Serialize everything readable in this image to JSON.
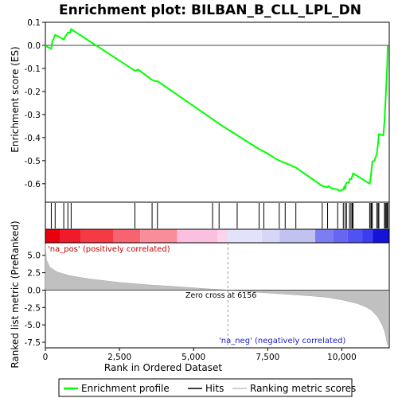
{
  "chart_data": {
    "type": "line",
    "title": "Enrichment plot: BILBAN_B_CLL_LPL_DN",
    "xlabel": "Rank in Ordered Dataset",
    "ylabel_top": "Enrichment score (ES)",
    "ylabel_bottom": "Ranked list metric (PreRanked)",
    "x_range": [
      0,
      11600
    ],
    "es_ylim": [
      -0.68,
      0.1
    ],
    "metric_ylim": [
      -8.3,
      6.8
    ],
    "x_ticks": [
      0,
      2500,
      5000,
      7500,
      10000
    ],
    "x_tick_labels": [
      "0",
      "2,500",
      "5,000",
      "7,500",
      "10,000"
    ],
    "es_ticks": [
      0.1,
      0.0,
      -0.1,
      -0.2,
      -0.3,
      -0.4,
      -0.5,
      -0.6
    ],
    "es_tick_labels": [
      "0.1",
      "0.0",
      "-0.1",
      "-0.2",
      "-0.3",
      "-0.4",
      "-0.5",
      "-0.6"
    ],
    "metric_ticks": [
      5.0,
      2.5,
      0.0,
      -2.5,
      -5.0,
      -7.5
    ],
    "metric_tick_labels": [
      "5.0",
      "2.5",
      "0.0",
      "-2.5",
      "-5.0",
      "-7.5"
    ],
    "es_curve": [
      [
        0,
        0
      ],
      [
        40,
        -0.005
      ],
      [
        200,
        -0.015
      ],
      [
        230,
        0.015
      ],
      [
        330,
        0.045
      ],
      [
        420,
        0.04
      ],
      [
        620,
        0.025
      ],
      [
        680,
        0.04
      ],
      [
        760,
        0.055
      ],
      [
        830,
        0.055
      ],
      [
        870,
        0.07
      ],
      [
        3020,
        -0.11
      ],
      [
        3130,
        -0.105
      ],
      [
        3600,
        -0.15
      ],
      [
        3700,
        -0.155
      ],
      [
        3780,
        -0.155
      ],
      [
        5640,
        -0.32
      ],
      [
        5860,
        -0.34
      ],
      [
        6470,
        -0.39
      ],
      [
        7210,
        -0.45
      ],
      [
        7370,
        -0.46
      ],
      [
        7890,
        -0.5
      ],
      [
        8090,
        -0.51
      ],
      [
        8450,
        -0.53
      ],
      [
        9340,
        -0.61
      ],
      [
        9520,
        -0.615
      ],
      [
        9560,
        -0.61
      ],
      [
        9650,
        -0.62
      ],
      [
        9860,
        -0.625
      ],
      [
        9900,
        -0.63
      ],
      [
        10050,
        -0.625
      ],
      [
        10080,
        -0.615
      ],
      [
        10110,
        -0.625
      ],
      [
        10130,
        -0.605
      ],
      [
        10160,
        -0.595
      ],
      [
        10240,
        -0.595
      ],
      [
        10260,
        -0.58
      ],
      [
        10310,
        -0.58
      ],
      [
        10350,
        -0.57
      ],
      [
        10380,
        -0.555
      ],
      [
        10940,
        -0.6
      ],
      [
        10980,
        -0.57
      ],
      [
        11000,
        -0.54
      ],
      [
        11030,
        -0.505
      ],
      [
        11100,
        -0.5
      ],
      [
        11180,
        -0.47
      ],
      [
        11220,
        -0.43
      ],
      [
        11250,
        -0.385
      ],
      [
        11400,
        -0.39
      ],
      [
        11440,
        -0.33
      ],
      [
        11470,
        -0.25
      ],
      [
        11500,
        -0.17
      ],
      [
        11530,
        -0.09
      ],
      [
        11550,
        0.0
      ]
    ],
    "hits": [
      200,
      330,
      620,
      760,
      870,
      3020,
      3600,
      3780,
      5640,
      5860,
      6470,
      7210,
      7370,
      7890,
      8090,
      8450,
      9340,
      9520,
      9860,
      10050,
      10110,
      10160,
      10260,
      10310,
      10350,
      10380,
      10940,
      10980,
      11000,
      11030,
      11180,
      11220,
      11250,
      11440,
      11470,
      11500,
      11530,
      11550
    ],
    "metric_curve": [
      [
        0,
        6.6
      ],
      [
        40,
        4.3
      ],
      [
        150,
        3.3
      ],
      [
        400,
        2.6
      ],
      [
        800,
        2.1
      ],
      [
        1500,
        1.6
      ],
      [
        2500,
        1.1
      ],
      [
        3500,
        0.75
      ],
      [
        4500,
        0.48
      ],
      [
        5500,
        0.18
      ],
      [
        6156,
        0.0
      ],
      [
        7000,
        -0.28
      ],
      [
        8000,
        -0.55
      ],
      [
        9000,
        -0.85
      ],
      [
        9500,
        -1.05
      ],
      [
        10000,
        -1.4
      ],
      [
        10500,
        -1.9
      ],
      [
        10800,
        -2.4
      ],
      [
        11000,
        -2.9
      ],
      [
        11200,
        -3.8
      ],
      [
        11350,
        -4.9
      ],
      [
        11450,
        -6.0
      ],
      [
        11550,
        -8.0
      ]
    ],
    "heatmap_segments": [
      {
        "x0": 0,
        "x1": 500,
        "color": "#e8000c"
      },
      {
        "x0": 500,
        "x1": 1200,
        "color": "#f01a2a"
      },
      {
        "x0": 1200,
        "x1": 2300,
        "color": "#f53a46"
      },
      {
        "x0": 2300,
        "x1": 3200,
        "color": "#f76470"
      },
      {
        "x0": 3200,
        "x1": 4450,
        "color": "#fa8e98"
      },
      {
        "x0": 4450,
        "x1": 5800,
        "color": "#fbc0e0"
      },
      {
        "x0": 5800,
        "x1": 6156,
        "color": "#fbd3ea"
      },
      {
        "x0": 6156,
        "x1": 7300,
        "color": "#e2e2fa"
      },
      {
        "x0": 7300,
        "x1": 7900,
        "color": "#d6d6f6"
      },
      {
        "x0": 7900,
        "x1": 9100,
        "color": "#c2c2f0"
      },
      {
        "x0": 9100,
        "x1": 9700,
        "color": "#7d7df2"
      },
      {
        "x0": 9700,
        "x1": 10200,
        "color": "#6666f2"
      },
      {
        "x0": 10200,
        "x1": 10700,
        "color": "#5252f2"
      },
      {
        "x0": 10700,
        "x1": 11050,
        "color": "#3c3cee"
      },
      {
        "x0": 11050,
        "x1": 11600,
        "color": "#1414d8"
      }
    ],
    "zero_cross": 6156,
    "annotations": {
      "pos": "'na_pos' (positively correlated)",
      "neg": "'na_neg' (negatively correlated)",
      "zero": "Zero cross at 6156"
    },
    "legend": [
      {
        "label": "Enrichment profile",
        "color": "#00ff00"
      },
      {
        "label": "Hits",
        "color": "#000000"
      },
      {
        "label": "Ranking metric scores",
        "color": "#c0c0c0"
      }
    ],
    "colors": {
      "es_line": "#00ff00",
      "metric_fill": "#c0c0c0",
      "frame": "#000000"
    }
  }
}
